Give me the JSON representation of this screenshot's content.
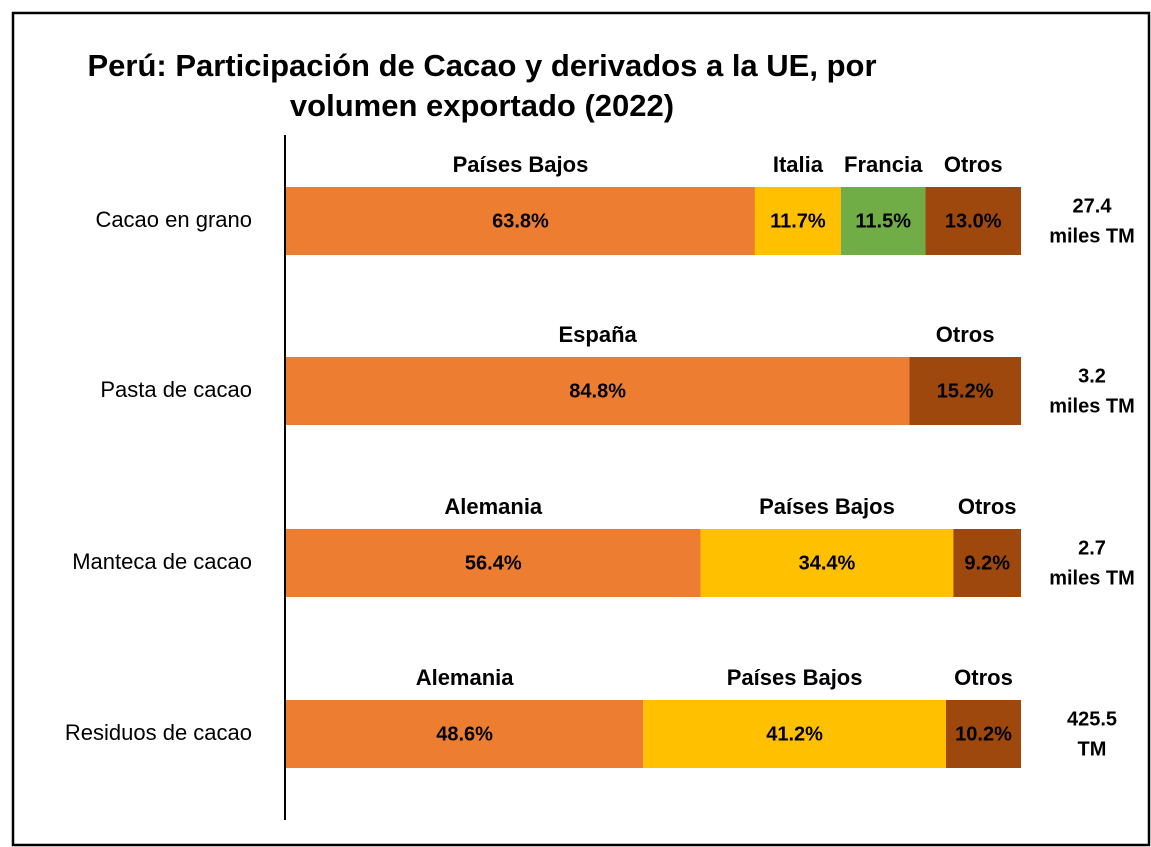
{
  "chart_data": {
    "type": "stacked-bar-horizontal",
    "title_lines": [
      "Perú: Participación de Cacao y derivados a la UE, por",
      "volumen exportado (2022)"
    ],
    "xlim": [
      0,
      100
    ],
    "rows": [
      {
        "category": "Cacao en grano",
        "total_lines": [
          "27.4",
          "miles TM"
        ],
        "segments": [
          {
            "name": "Países Bajos",
            "value": 63.8,
            "value_label": "63.8%",
            "color": "#ED7D31"
          },
          {
            "name": "Italia",
            "value": 11.7,
            "value_label": "11.7%",
            "color": "#FFC000"
          },
          {
            "name": "Francia",
            "value": 11.5,
            "value_label": "11.5%",
            "color": "#70AD47"
          },
          {
            "name": "Otros",
            "value": 13.0,
            "value_label": "13.0%",
            "color": "#9E480E"
          }
        ]
      },
      {
        "category": "Pasta de cacao",
        "total_lines": [
          "3.2",
          "miles TM"
        ],
        "segments": [
          {
            "name": "España",
            "value": 84.8,
            "value_label": "84.8%",
            "color": "#ED7D31"
          },
          {
            "name": "Otros",
            "value": 15.2,
            "value_label": "15.2%",
            "color": "#9E480E"
          }
        ]
      },
      {
        "category": "Manteca de cacao",
        "total_lines": [
          "2.7",
          "miles TM"
        ],
        "segments": [
          {
            "name": "Alemania",
            "value": 56.4,
            "value_label": "56.4%",
            "color": "#ED7D31"
          },
          {
            "name": "Países Bajos",
            "value": 34.4,
            "value_label": "34.4%",
            "color": "#FFC000"
          },
          {
            "name": "Otros",
            "value": 9.2,
            "value_label": "9.2%",
            "color": "#9E480E"
          }
        ]
      },
      {
        "category": "Residuos de cacao",
        "total_lines": [
          "425.5",
          "TM"
        ],
        "segments": [
          {
            "name": "Alemania",
            "value": 48.6,
            "value_label": "48.6%",
            "color": "#ED7D31"
          },
          {
            "name": "Países Bajos",
            "value": 41.2,
            "value_label": "41.2%",
            "color": "#FFC000"
          },
          {
            "name": "Otros",
            "value": 10.2,
            "value_label": "10.2%",
            "color": "#9E480E"
          }
        ]
      }
    ]
  }
}
